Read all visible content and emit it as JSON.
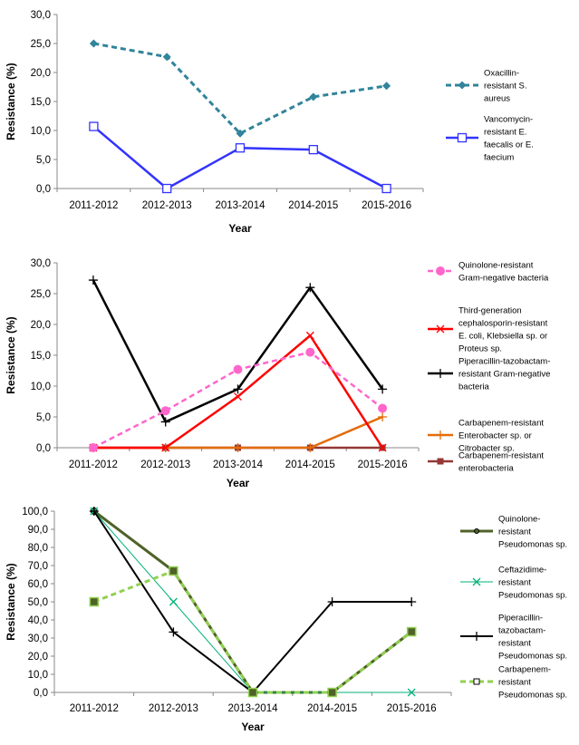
{
  "chart_data": [
    {
      "type": "line",
      "xlabel": "Year",
      "ylabel": "Resistance (%)",
      "categories": [
        "2011-2012",
        "2012-2013",
        "2013-2014",
        "2014-2015",
        "2015-2016"
      ],
      "ylim": [
        0,
        30
      ],
      "yticks": [
        "0,0",
        "5,0",
        "10,0",
        "15,0",
        "20,0",
        "25,0",
        "30,0"
      ],
      "grid": false,
      "legend": "right",
      "series": [
        {
          "name": "Oxacillin-resistant S. aureus",
          "legend_lines": [
            "Oxacillin-",
            "resistant S.",
            "aureus"
          ],
          "values": [
            25.0,
            22.7,
            9.5,
            15.8,
            17.7
          ],
          "color": "#31849B",
          "dash": "6 4",
          "width": 3,
          "marker": "diamond"
        },
        {
          "name": "Vancomycin-resistant E. faecalis or E. faecium",
          "legend_lines": [
            "Vancomycin-",
            "resistant E.",
            "faecalis or E.",
            "faecium"
          ],
          "values": [
            10.7,
            0.0,
            7.0,
            6.7,
            0.0
          ],
          "color": "#3333FF",
          "dash": "",
          "width": 2.5,
          "marker": "square-open"
        }
      ]
    },
    {
      "type": "line",
      "xlabel": "Year",
      "ylabel": "Resistance (%)",
      "categories": [
        "2011-2012",
        "2012-2013",
        "2013-2014",
        "2014-2015",
        "2015-2016"
      ],
      "ylim": [
        0,
        30
      ],
      "yticks": [
        "0,0",
        "5,0",
        "10,0",
        "15,0",
        "20,0",
        "25,0",
        "30,0"
      ],
      "grid": false,
      "legend": "right",
      "series": [
        {
          "name": "Quinolone-resistant Gram-negative bacteria",
          "legend_lines": [
            "Quinolone-resistant",
            "Gram-negative bacteria"
          ],
          "values": [
            0.0,
            6.0,
            12.7,
            15.5,
            6.4
          ],
          "color": "#FF66CC",
          "dash": "6 4",
          "width": 2.5,
          "marker": "circle"
        },
        {
          "name": "Third-generation cephalosporin-resistant E. coli, Klebsiella sp. or Proteus sp.",
          "legend_lines": [
            "Third-generation",
            "cephalosporin-resistant",
            "E. coli, Klebsiella sp. or",
            "Proteus sp."
          ],
          "values": [
            0.0,
            0.0,
            8.3,
            18.2,
            0.0
          ],
          "color": "#FF0000",
          "dash": "",
          "width": 2.5,
          "marker": "x"
        },
        {
          "name": "Piperacillin-tazobactam-resistant Gram-negative bacteria",
          "legend_lines": [
            "Piperacillin-tazobactam-",
            "resistant Gram-negative",
            "bacteria"
          ],
          "values": [
            27.2,
            4.2,
            9.5,
            26.0,
            9.5
          ],
          "color": "#000000",
          "dash": "",
          "width": 2.5,
          "marker": "plus"
        },
        {
          "name": "Carbapenem-resistant Enterobacter sp. or Citrobacter sp.",
          "legend_lines": [
            "Carbapenem-resistant",
            "Enterobacter sp. or",
            "Citrobacter sp."
          ],
          "values": [
            0.0,
            0.0,
            0.0,
            0.0,
            5.0
          ],
          "color": "#E36C0A",
          "dash": "",
          "width": 2.5,
          "marker": "plus"
        },
        {
          "name": "Carbapenem-resistant enterobacteria",
          "legend_lines": [
            "Carbapenem-resistant",
            "enterobacteria"
          ],
          "values": [
            0.0,
            0.0,
            0.0,
            0.0,
            0.0
          ],
          "color": "#953735",
          "dash": "",
          "width": 2.5,
          "marker": "square"
        }
      ]
    },
    {
      "type": "line",
      "xlabel": "Year",
      "ylabel": "Resistance (%)",
      "categories": [
        "2011-2012",
        "2012-2013",
        "2013-2014",
        "2014-2015",
        "2015-2016"
      ],
      "ylim": [
        0,
        100
      ],
      "yticks": [
        "0,0",
        "10,0",
        "20,0",
        "30,0",
        "40,0",
        "50,0",
        "60,0",
        "70,0",
        "80,0",
        "90,0",
        "100,0"
      ],
      "grid": false,
      "legend": "right",
      "series": [
        {
          "name": "Quinolone-resistant Pseudomonas sp.",
          "legend_lines": [
            "Quinolone-",
            "resistant",
            "Pseudomonas sp."
          ],
          "values": [
            100.0,
            67.0,
            0.0,
            0.0,
            33.5
          ],
          "color": "#4F6228",
          "dash": "",
          "width": 3,
          "marker": "circle"
        },
        {
          "name": "Ceftazidime-resistant Pseudomonas sp.",
          "legend_lines": [
            "Ceftazidime-",
            "resistant",
            "Pseudomonas sp."
          ],
          "values": [
            100.0,
            50.0,
            0.0,
            0.0,
            0.0
          ],
          "color": "#00B27A",
          "dash": "",
          "width": 1,
          "marker": "x"
        },
        {
          "name": "Piperacillin-tazobactam-resistant Pseudomonas sp.",
          "legend_lines": [
            "Piperacillin-",
            "tazobactam-",
            "resistant",
            "Pseudomonas sp."
          ],
          "values": [
            100.0,
            33.3,
            0.0,
            50.0,
            50.0
          ],
          "color": "#000000",
          "dash": "",
          "width": 2,
          "marker": "plus"
        },
        {
          "name": "Carbapenem-resistant Pseudomonas sp.",
          "legend_lines": [
            "Carbapenem-",
            "resistant",
            "Pseudomonas sp."
          ],
          "values": [
            50.0,
            67.0,
            0.0,
            0.0,
            33.5
          ],
          "color": "#92D050",
          "dash": "6 4",
          "width": 3,
          "marker": "square-open"
        }
      ]
    }
  ]
}
